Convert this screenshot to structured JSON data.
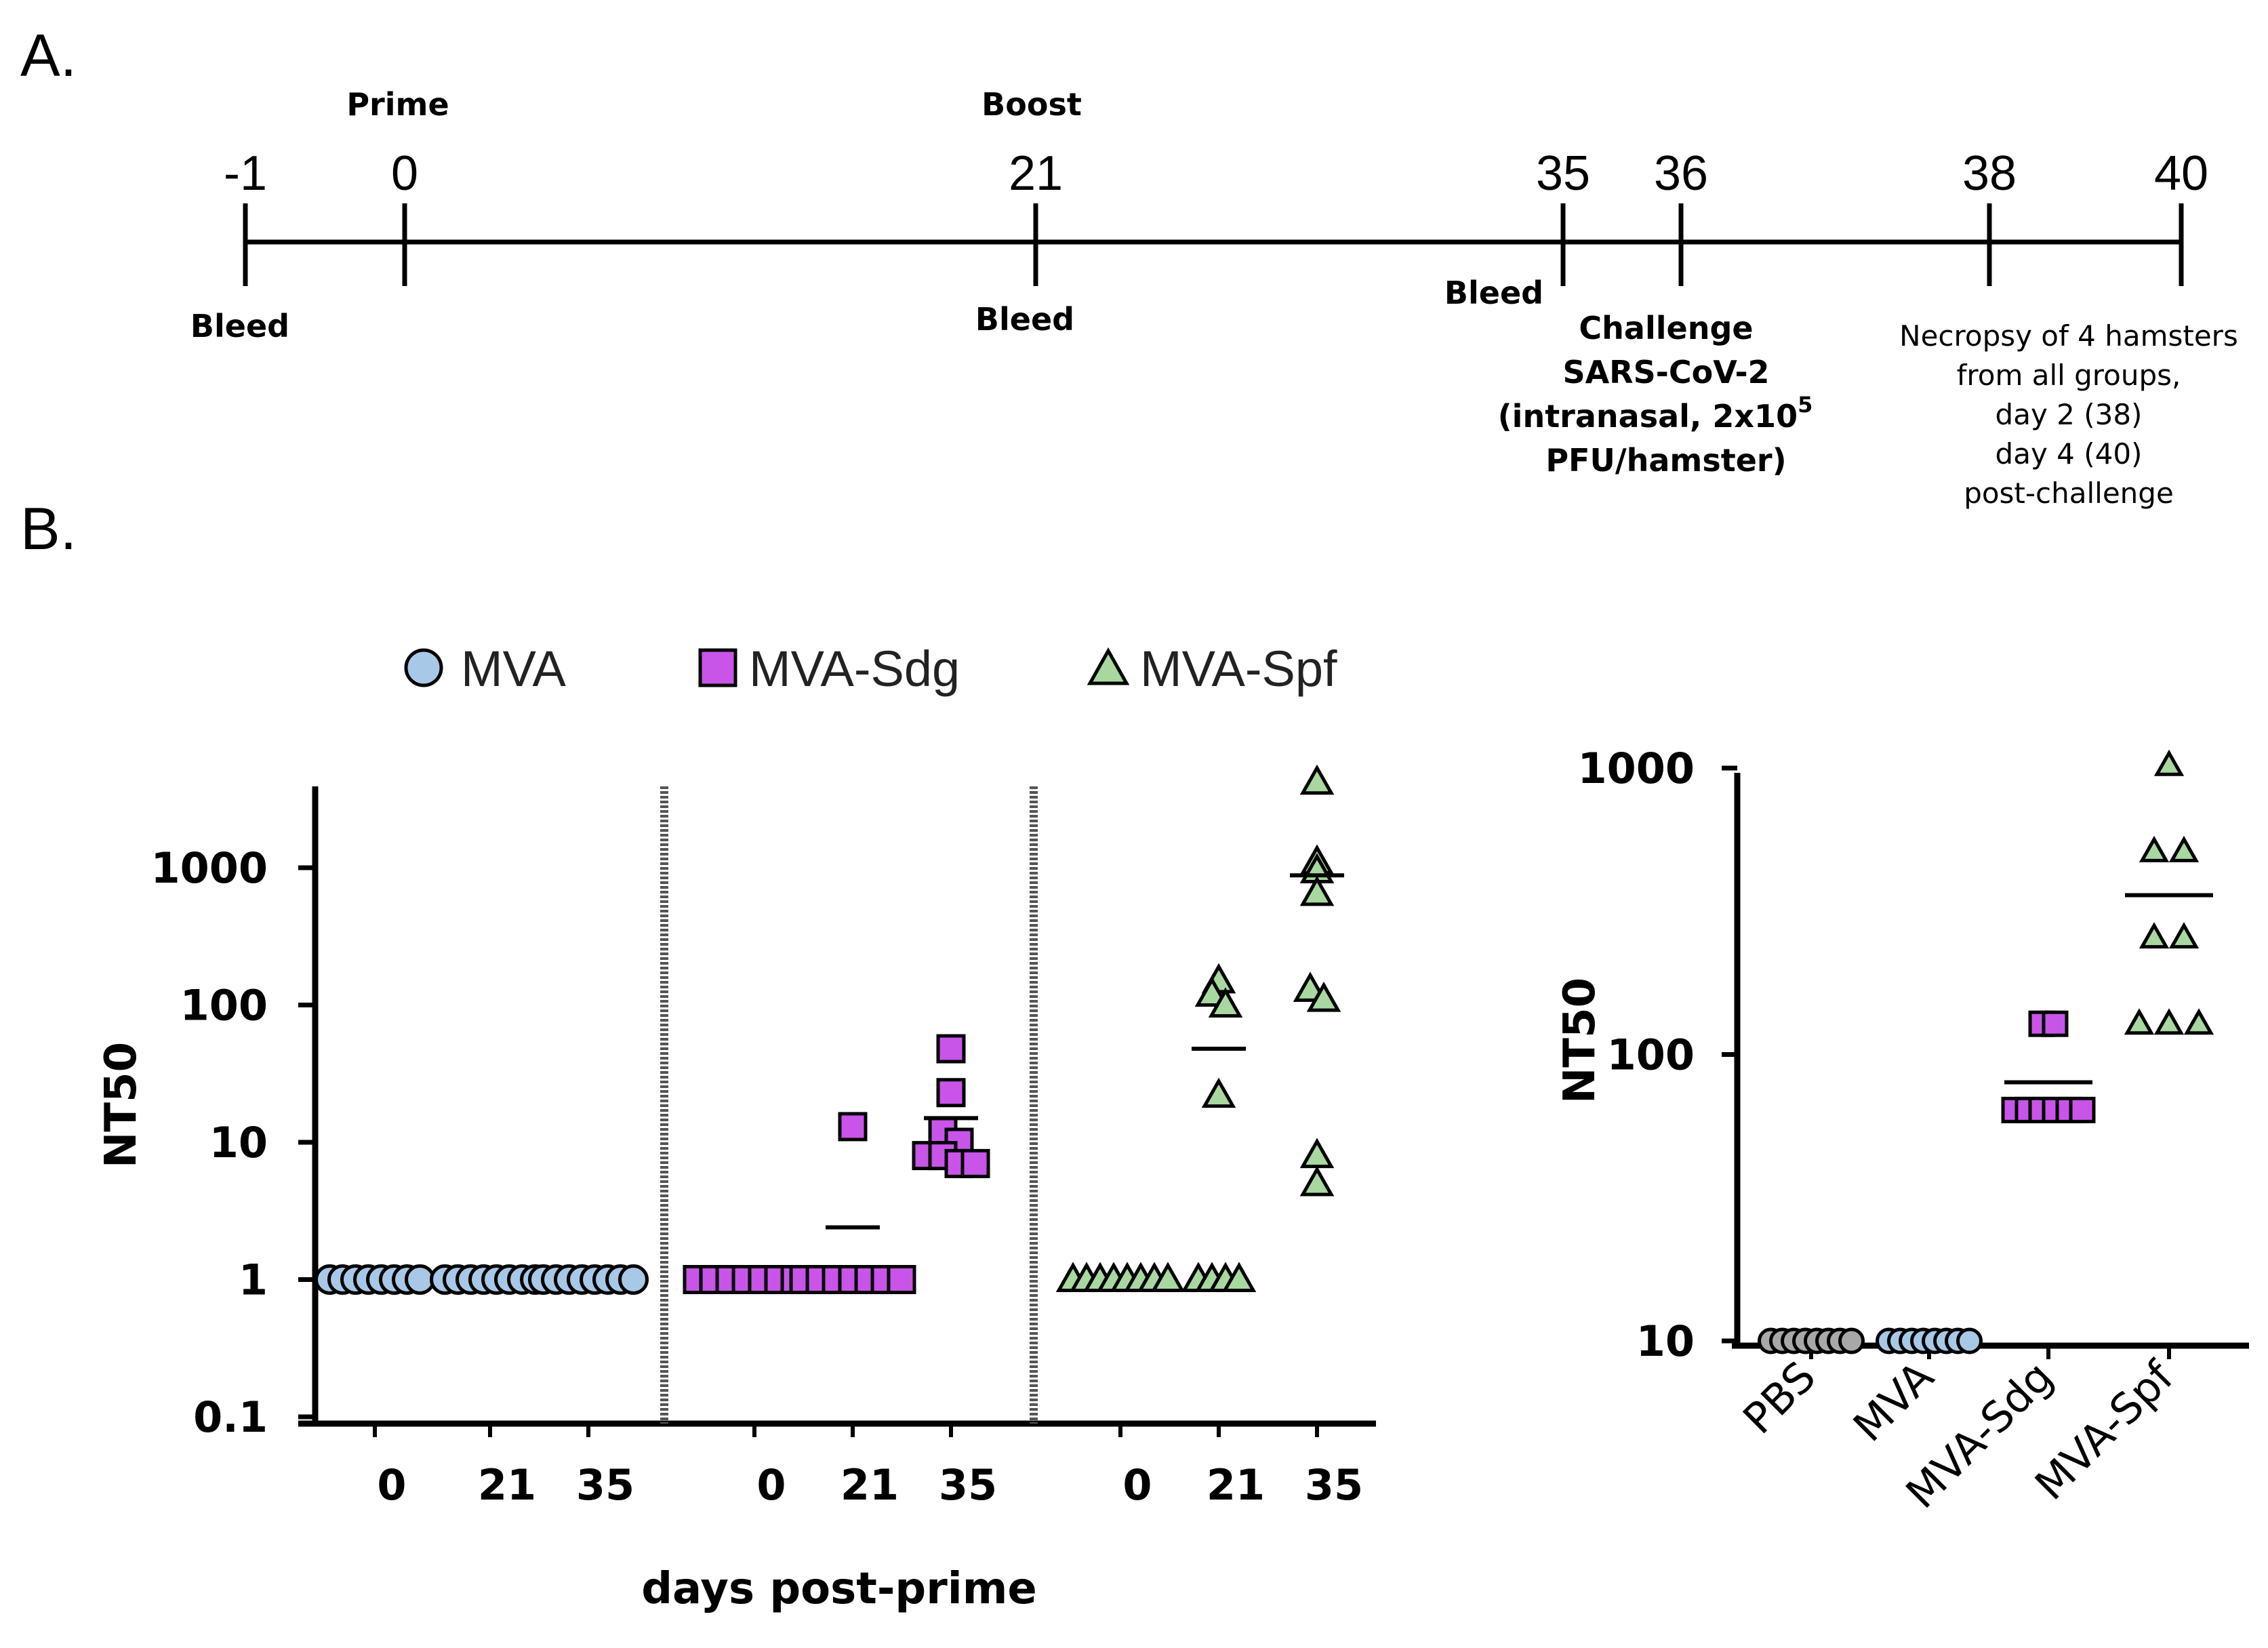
{
  "panels": {
    "a": "A.",
    "b": "B."
  },
  "timeline": {
    "events": [
      {
        "day": -1,
        "label": "-1",
        "below": "Bleed",
        "above": ""
      },
      {
        "day": 0,
        "label": "0",
        "below": "",
        "above": "Prime"
      },
      {
        "day": 21,
        "label": "21",
        "below": "Bleed",
        "above": "Boost"
      },
      {
        "day": 35,
        "label": "35",
        "below": "Bleed",
        "above": ""
      },
      {
        "day": 36,
        "label": "36",
        "below": "",
        "above": ""
      },
      {
        "day": 38,
        "label": "38",
        "below": "",
        "above": ""
      },
      {
        "day": 40,
        "label": "40",
        "below": "",
        "above": ""
      }
    ],
    "challenge": {
      "line1": "Challenge",
      "line2": "SARS-CoV-2",
      "line3": "(intranasal, 2x10",
      "sup": "5",
      "line4": "PFU/hamster)"
    },
    "necropsy": [
      "Necropsy of 4 hamsters",
      "from all groups,",
      "day 2 (38)",
      "day 4 (40)",
      "post-challenge"
    ]
  },
  "legend": [
    {
      "label": "MVA",
      "shape": "circle",
      "color": "#a8c8e8"
    },
    {
      "label": "MVA-Sdg",
      "shape": "square",
      "color": "#c855e8"
    },
    {
      "label": "MVA-Spf",
      "shape": "triangle",
      "color": "#a8d8a0"
    }
  ],
  "chart_data": [
    {
      "type": "scatter",
      "scale": "log",
      "ylabel": "NT50",
      "xlabel": "days post-prime",
      "ylim": [
        0.1,
        5000
      ],
      "yticks": [
        0.1,
        1,
        10,
        100,
        1000
      ],
      "ytick_labels": [
        "0.1",
        "1",
        "10",
        "100",
        "1000"
      ],
      "groups": [
        {
          "name": "MVA",
          "shape": "circle",
          "color": "#a8c8e8",
          "days": [
            {
              "day": "0",
              "values": [
                1,
                1,
                1,
                1,
                1,
                1,
                1,
                1
              ],
              "mean": null
            },
            {
              "day": "21",
              "values": [
                1,
                1,
                1,
                1,
                1,
                1,
                1,
                1
              ],
              "mean": null
            },
            {
              "day": "35",
              "values": [
                1,
                1,
                1,
                1,
                1,
                1,
                1,
                1
              ],
              "mean": null
            }
          ]
        },
        {
          "name": "MVA-Sdg",
          "shape": "square",
          "color": "#c855e8",
          "days": [
            {
              "day": "0",
              "values": [
                1,
                1,
                1,
                1,
                1,
                1,
                1,
                1
              ],
              "mean": null
            },
            {
              "day": "21",
              "values": [
                13,
                1,
                1,
                1,
                1,
                1,
                1,
                1
              ],
              "mean": 2.4
            },
            {
              "day": "35",
              "values": [
                48,
                23,
                12,
                10,
                8,
                8,
                7,
                7
              ],
              "mean": 15
            }
          ]
        },
        {
          "name": "MVA-Spf",
          "shape": "triangle",
          "color": "#a8d8a0",
          "days": [
            {
              "day": "0",
              "values": [
                1,
                1,
                1,
                1,
                1,
                1,
                1,
                1
              ],
              "mean": null
            },
            {
              "day": "21",
              "values": [
                150,
                120,
                100,
                22,
                1,
                1,
                1,
                1
              ],
              "mean": 48
            },
            {
              "day": "35",
              "values": [
                4200,
                1100,
                950,
                650,
                130,
                110,
                8,
                5
              ],
              "mean": 880
            }
          ]
        }
      ]
    },
    {
      "type": "scatter",
      "scale": "log",
      "ylabel": "NT50",
      "ylim": [
        10,
        1000
      ],
      "yticks": [
        10,
        100,
        1000
      ],
      "ytick_labels": [
        "10",
        "100",
        "1000"
      ],
      "categories": [
        "PBS",
        "MVA",
        "MVA-Sdg",
        "MVA-Spf"
      ],
      "groups": [
        {
          "name": "PBS",
          "shape": "circle",
          "color": "#a8a8a8",
          "values": [
            10,
            10,
            10,
            10,
            10,
            10,
            10,
            10
          ],
          "mean": null
        },
        {
          "name": "MVA",
          "shape": "circle",
          "color": "#a8c8e8",
          "values": [
            10,
            10,
            10,
            10,
            10,
            10,
            10,
            10
          ],
          "mean": null
        },
        {
          "name": "MVA-Sdg",
          "shape": "square",
          "color": "#c855e8",
          "values": [
            128,
            128,
            64,
            64,
            64,
            64,
            64,
            64
          ],
          "mean": 80
        },
        {
          "name": "MVA-Spf",
          "shape": "triangle",
          "color": "#a8d8a0",
          "values": [
            1024,
            512,
            512,
            256,
            256,
            128,
            128,
            128
          ],
          "mean": 360
        }
      ]
    }
  ]
}
